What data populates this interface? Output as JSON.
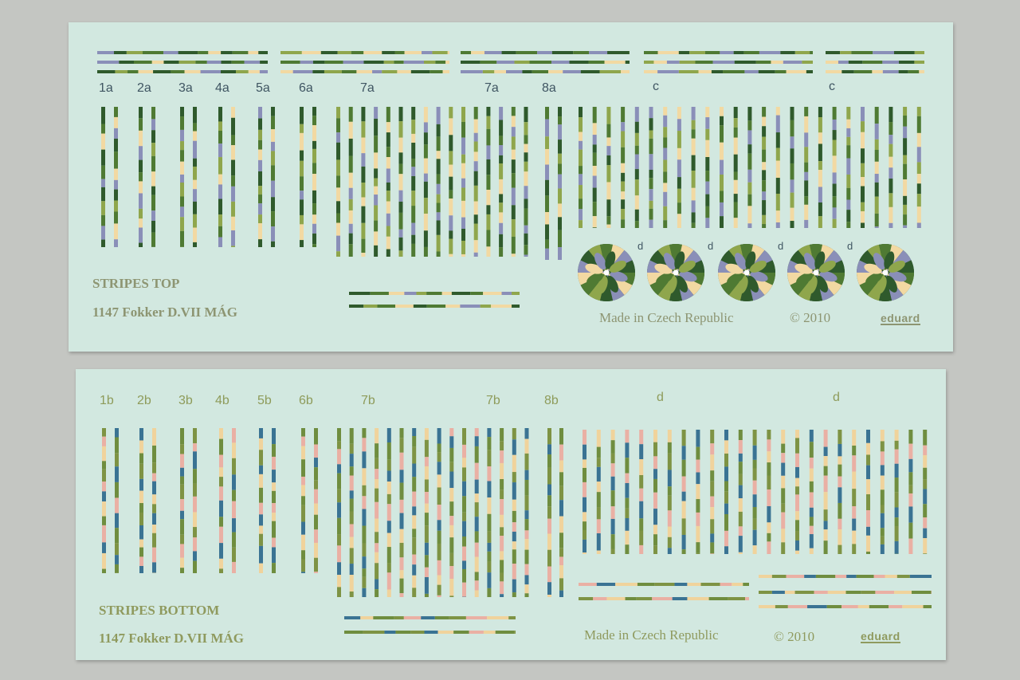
{
  "colors": {
    "paper": "#d2e8e0",
    "top_segments": [
      "#4f7a33",
      "#f2d9a2",
      "#8a8fb8",
      "#2f5a2c",
      "#8fa64c"
    ],
    "bottom_segments": [
      "#7e9344",
      "#eab0a4",
      "#3a7393",
      "#f0d39c",
      "#6f8d3f"
    ]
  },
  "top_sheet": {
    "labels": [
      "1a",
      "2a",
      "3a",
      "4a",
      "5a",
      "6a",
      "7a",
      "7a",
      "8a",
      "c",
      "c"
    ],
    "rosette_labels": [
      "d",
      "d",
      "d",
      "d"
    ],
    "title": "STRIPES  TOP",
    "subtitle": "1147 Fokker D.VII MÁG",
    "made_in": "Made in Czech Republic",
    "copyright": "© 2010",
    "brand": "eduard"
  },
  "bottom_sheet": {
    "labels": [
      "1b",
      "2b",
      "3b",
      "4b",
      "5b",
      "6b",
      "7b",
      "7b",
      "8b",
      "d",
      "d"
    ],
    "title": "STRIPES  BOTTOM",
    "subtitle": "1147 Fokker D.VII MÁG",
    "made_in": "Made in Czech Republic",
    "copyright": "© 2010",
    "brand": "eduard"
  }
}
